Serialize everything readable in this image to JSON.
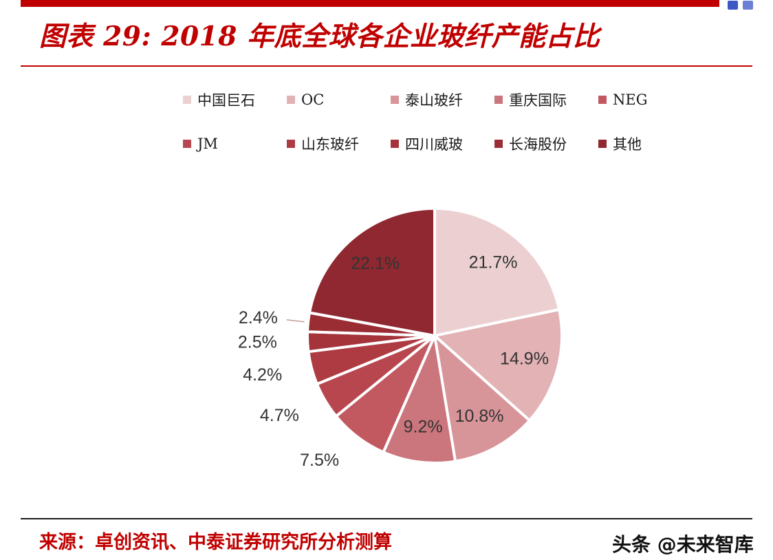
{
  "page": {
    "title": "图表 29: 2018 年底全球各企业玻纤产能占比",
    "source": "来源：卓创资讯、中泰证券研究所分析测算",
    "watermark": "头条 @未来智库"
  },
  "colors": {
    "accent_red": "#c00000",
    "top_bar": "#c00000",
    "title_rule": "#c00000",
    "bottom_rule": "#1a1a1a",
    "label_text": "#333333",
    "leader_line": "#c49a9a",
    "win_icon_1": "#3a57c4",
    "win_icon_2": "#6b7fd4"
  },
  "chart_data": {
    "type": "pie",
    "title": "2018 年底全球各企业玻纤产能占比",
    "unit": "%",
    "start_angle_deg": 0,
    "direction": "clockwise",
    "legend_position": "top",
    "legend_columns": 5,
    "series": [
      {
        "name": "中国巨石",
        "value": 21.7,
        "label": "21.7%",
        "color": "#ecd0d1",
        "label_pos": "inside"
      },
      {
        "name": "OC",
        "value": 14.9,
        "label": "14.9%",
        "color": "#e2b2b5",
        "label_pos": "inside"
      },
      {
        "name": "泰山玻纤",
        "value": 10.8,
        "label": "10.8%",
        "color": "#d79499",
        "label_pos": "inside"
      },
      {
        "name": "重庆国际",
        "value": 9.2,
        "label": "9.2%",
        "color": "#cb767c",
        "label_pos": "inside"
      },
      {
        "name": "NEG",
        "value": 7.5,
        "label": "7.5%",
        "color": "#c25960",
        "label_pos": "outside"
      },
      {
        "name": "JM",
        "value": 4.7,
        "label": "4.7%",
        "color": "#b8464e",
        "label_pos": "outside"
      },
      {
        "name": "山东玻纤",
        "value": 4.2,
        "label": "4.2%",
        "color": "#ae3a42",
        "label_pos": "outside"
      },
      {
        "name": "四川威玻",
        "value": 2.5,
        "label": "2.5%",
        "color": "#a4333a",
        "label_pos": "outside"
      },
      {
        "name": "长海股份",
        "value": 2.4,
        "label": "2.4%",
        "color": "#9a2d34",
        "label_pos": "outside",
        "leader": true
      },
      {
        "name": "其他",
        "value": 22.1,
        "label": "22.1%",
        "color": "#8f2830",
        "label_pos": "inside"
      }
    ]
  }
}
